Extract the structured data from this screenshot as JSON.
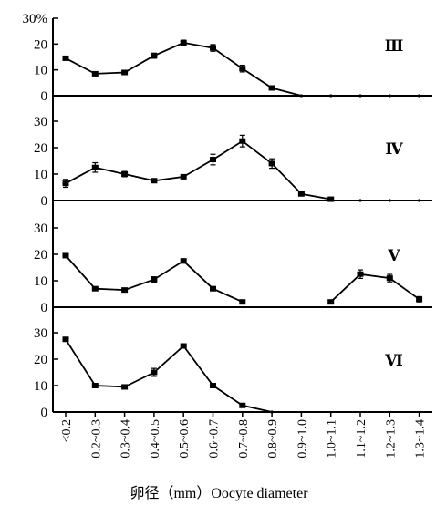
{
  "chart_data": {
    "type": "line",
    "xlabel": "卵径（mm）Oocyte diameter",
    "y_unit": "%",
    "categories": [
      "<0.2",
      "0.2~0.3",
      "0.3~0.4",
      "0.4~0.5",
      "0.5~0.6",
      "0.6~0.7",
      "0.7~0.8",
      "0.8~0.9",
      "0.9~1.0",
      "1.0~1.1",
      "1.1~1.2",
      "1.2~1.3",
      "1.3~1.4"
    ],
    "panels": [
      {
        "label": "Ⅲ",
        "y_ticks": [
          "30%",
          "20",
          "10",
          "0"
        ],
        "ylim": [
          0,
          30
        ],
        "values": [
          14.5,
          8.5,
          9,
          15.5,
          20.5,
          18.5,
          10.5,
          3,
          0,
          0,
          0,
          0,
          0
        ],
        "errors": [
          0.6,
          0.6,
          0.6,
          1,
          1,
          1.3,
          1.3,
          0.8,
          0,
          0,
          0,
          0,
          0
        ],
        "segments": [
          [
            0,
            12
          ]
        ]
      },
      {
        "label": "Ⅳ",
        "y_ticks": [
          "30",
          "20",
          "10",
          "0"
        ],
        "ylim": [
          0,
          30
        ],
        "values": [
          6.5,
          12.5,
          10,
          7.5,
          9,
          15.5,
          22.5,
          14,
          2.5,
          0.5,
          0,
          0,
          0
        ],
        "errors": [
          1.5,
          1.8,
          1,
          0.6,
          0.6,
          2,
          2.2,
          1.8,
          0.5,
          0.3,
          0,
          0,
          0
        ],
        "segments": [
          [
            0,
            9
          ]
        ]
      },
      {
        "label": "Ⅴ",
        "y_ticks": [
          "30",
          "20",
          "10",
          "0"
        ],
        "ylim": [
          0,
          30
        ],
        "values": [
          19.5,
          7,
          6.5,
          10.5,
          17.5,
          7,
          2,
          null,
          null,
          2,
          12.5,
          11,
          3
        ],
        "errors": [
          0.6,
          0.5,
          0.5,
          1,
          0.8,
          0.4,
          0.4,
          null,
          null,
          0.4,
          1.6,
          1.4,
          1
        ],
        "segments": [
          [
            0,
            6
          ],
          [
            9,
            12
          ]
        ]
      },
      {
        "label": "Ⅵ",
        "y_ticks": [
          "30",
          "20",
          "10",
          "0"
        ],
        "ylim": [
          0,
          30
        ],
        "values": [
          27.5,
          10,
          9.5,
          15,
          25,
          10,
          2.5,
          0,
          null,
          null,
          null,
          null,
          null
        ],
        "errors": [
          0.6,
          0.8,
          0.8,
          1.5,
          0.8,
          0.4,
          0.6,
          0,
          null,
          null,
          null,
          null,
          null
        ],
        "segments": [
          [
            0,
            7
          ]
        ]
      }
    ]
  }
}
